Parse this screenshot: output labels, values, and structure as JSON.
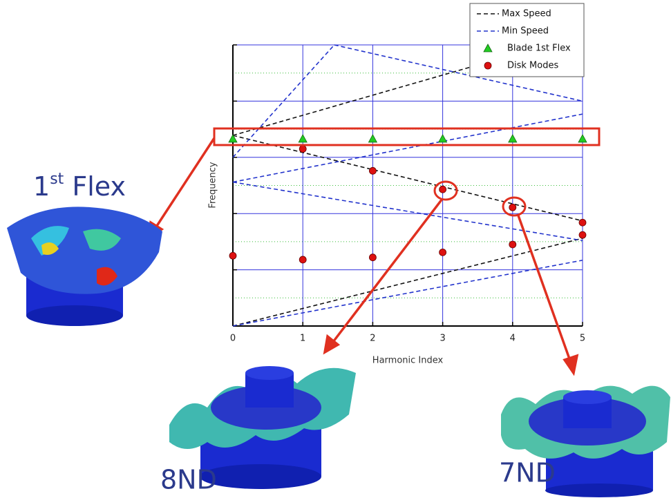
{
  "chart_data": {
    "type": "line",
    "xlabel": "Harmonic Index",
    "ylabel": "Frequency",
    "xlim": [
      0,
      5
    ],
    "xticks": [
      0,
      1,
      2,
      3,
      4,
      5
    ],
    "ylim": [
      0,
      5
    ],
    "yticks": [
      0,
      1,
      2,
      3,
      4,
      5
    ],
    "yminor": [
      0.5,
      1.5,
      2.5,
      3.5,
      4.5
    ],
    "grid": true,
    "series": [
      {
        "name": "Max Speed",
        "type": "line",
        "color": "#111111",
        "x": [
          0,
          5,
          null,
          0,
          5,
          null,
          0,
          4.5
        ],
        "values": [
          0,
          1.56,
          null,
          3.39,
          1.87,
          null,
          3.39,
          5
        ]
      },
      {
        "name": "Min Speed",
        "type": "line",
        "color": "#2233cc",
        "x": [
          0,
          5,
          null,
          0,
          5,
          null,
          0,
          5,
          null,
          0,
          1.45,
          null,
          1.45,
          5
        ],
        "values": [
          0,
          1.17,
          null,
          2.56,
          1.52,
          null,
          2.56,
          3.77,
          null,
          3.0,
          5,
          null,
          5,
          4.0
        ]
      },
      {
        "name": "Blade 1st Flex",
        "type": "scatter",
        "marker": "triangle",
        "color": "#22cc22",
        "x": [
          0,
          1,
          2,
          3,
          4,
          5
        ],
        "values": [
          3.33,
          3.33,
          3.33,
          3.33,
          3.33,
          3.33
        ]
      },
      {
        "name": "Disk Modes",
        "type": "scatter",
        "marker": "circle",
        "color": "#dd1111",
        "x": [
          0,
          1,
          1,
          2,
          2,
          3,
          3,
          4,
          4,
          5,
          5
        ],
        "values": [
          1.25,
          3.15,
          1.18,
          2.76,
          1.22,
          2.43,
          1.31,
          2.11,
          1.45,
          1.84,
          1.62
        ]
      }
    ],
    "annotations": {
      "flex": [
        "1",
        "st",
        " Flex"
      ],
      "mode_a": "8ND",
      "mode_b": "7ND"
    }
  }
}
